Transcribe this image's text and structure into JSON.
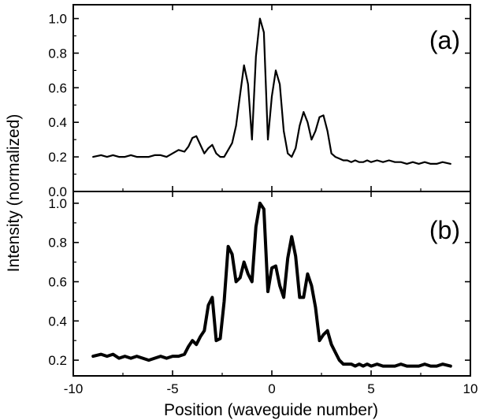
{
  "chart_data": [
    {
      "type": "line",
      "panel_label": "(a)",
      "xlim": [
        -10,
        10
      ],
      "ylim": [
        0.0,
        1.08
      ],
      "x_ticks": [
        -10,
        -5,
        0,
        5,
        10
      ],
      "y_ticks": [
        0.0,
        0.2,
        0.4,
        0.6,
        0.8,
        1.0
      ],
      "y_tick_labels": [
        "0.0",
        "0.2",
        "0.4",
        "0.6",
        "0.8",
        "1.0"
      ],
      "grid": false,
      "series": [
        {
          "color": "#000000",
          "x": [
            -9.0,
            -8.6,
            -8.3,
            -8.0,
            -7.7,
            -7.4,
            -7.1,
            -6.8,
            -6.5,
            -6.2,
            -5.9,
            -5.6,
            -5.3,
            -5.0,
            -4.7,
            -4.4,
            -4.2,
            -4.0,
            -3.8,
            -3.6,
            -3.4,
            -3.2,
            -3.0,
            -2.8,
            -2.6,
            -2.4,
            -2.2,
            -2.0,
            -1.8,
            -1.6,
            -1.4,
            -1.2,
            -1.0,
            -0.8,
            -0.6,
            -0.4,
            -0.2,
            0.0,
            0.2,
            0.4,
            0.6,
            0.8,
            1.0,
            1.2,
            1.4,
            1.6,
            1.8,
            2.0,
            2.2,
            2.4,
            2.6,
            2.8,
            3.0,
            3.2,
            3.4,
            3.6,
            3.8,
            4.0,
            4.2,
            4.4,
            4.6,
            4.8,
            5.0,
            5.3,
            5.6,
            5.9,
            6.2,
            6.5,
            6.8,
            7.1,
            7.4,
            7.7,
            8.0,
            8.3,
            8.6,
            9.0
          ],
          "y": [
            0.2,
            0.21,
            0.2,
            0.21,
            0.2,
            0.2,
            0.21,
            0.2,
            0.2,
            0.2,
            0.21,
            0.21,
            0.2,
            0.22,
            0.24,
            0.23,
            0.26,
            0.31,
            0.32,
            0.27,
            0.22,
            0.25,
            0.27,
            0.22,
            0.2,
            0.2,
            0.24,
            0.28,
            0.38,
            0.56,
            0.73,
            0.62,
            0.3,
            0.78,
            1.0,
            0.92,
            0.3,
            0.55,
            0.7,
            0.62,
            0.35,
            0.22,
            0.2,
            0.25,
            0.38,
            0.46,
            0.4,
            0.3,
            0.35,
            0.43,
            0.44,
            0.35,
            0.22,
            0.2,
            0.19,
            0.18,
            0.18,
            0.17,
            0.18,
            0.17,
            0.17,
            0.18,
            0.17,
            0.18,
            0.17,
            0.18,
            0.17,
            0.17,
            0.16,
            0.17,
            0.16,
            0.17,
            0.16,
            0.16,
            0.17,
            0.16
          ],
          "x_shift": [
            0,
            0,
            0,
            0,
            0,
            0,
            0,
            0,
            0,
            0,
            0,
            0,
            0,
            0,
            0,
            0,
            0,
            0,
            0,
            0,
            0,
            0,
            0,
            0,
            0,
            0,
            0,
            0,
            0,
            0,
            0,
            0,
            0,
            0,
            0,
            0,
            0,
            0,
            0,
            0,
            0,
            0,
            0,
            0,
            0,
            0,
            0,
            0,
            0,
            0,
            0,
            0,
            0,
            0,
            0,
            0,
            0,
            0,
            0,
            0,
            0,
            0,
            0,
            0,
            0,
            0,
            0,
            0,
            0,
            0,
            0,
            0,
            0,
            0,
            0,
            0
          ]
        }
      ]
    },
    {
      "type": "line",
      "panel_label": "(b)",
      "xlim": [
        -10,
        10
      ],
      "ylim": [
        0.12,
        1.06
      ],
      "x_ticks": [
        -10,
        -5,
        0,
        5,
        10
      ],
      "x_tick_labels": [
        "-10",
        "-5",
        "0",
        "5",
        "10"
      ],
      "y_ticks": [
        0.2,
        0.4,
        0.6,
        0.8,
        1.0
      ],
      "y_tick_labels": [
        "0.2",
        "0.4",
        "0.6",
        "0.8",
        "1.0"
      ],
      "grid": false,
      "series": [
        {
          "color": "#000000",
          "x": [
            -9.0,
            -8.6,
            -8.3,
            -8.0,
            -7.7,
            -7.4,
            -7.1,
            -6.8,
            -6.5,
            -6.2,
            -5.9,
            -5.6,
            -5.3,
            -5.0,
            -4.7,
            -4.4,
            -4.2,
            -4.0,
            -3.8,
            -3.6,
            -3.4,
            -3.2,
            -3.0,
            -2.8,
            -2.6,
            -2.4,
            -2.2,
            -2.0,
            -1.8,
            -1.6,
            -1.4,
            -1.2,
            -1.0,
            -0.8,
            -0.6,
            -0.4,
            -0.2,
            0.0,
            0.2,
            0.4,
            0.6,
            0.8,
            1.0,
            1.2,
            1.4,
            1.6,
            1.8,
            2.0,
            2.2,
            2.4,
            2.6,
            2.8,
            3.0,
            3.2,
            3.4,
            3.6,
            3.8,
            4.0,
            4.2,
            4.4,
            4.6,
            4.8,
            5.0,
            5.3,
            5.6,
            5.9,
            6.2,
            6.5,
            6.8,
            7.1,
            7.4,
            7.7,
            8.0,
            8.3,
            8.6,
            9.0
          ],
          "y": [
            0.22,
            0.23,
            0.22,
            0.23,
            0.21,
            0.22,
            0.21,
            0.22,
            0.21,
            0.2,
            0.21,
            0.22,
            0.21,
            0.22,
            0.22,
            0.23,
            0.27,
            0.3,
            0.28,
            0.32,
            0.35,
            0.48,
            0.52,
            0.3,
            0.31,
            0.5,
            0.78,
            0.74,
            0.6,
            0.62,
            0.7,
            0.64,
            0.6,
            0.88,
            1.0,
            0.97,
            0.55,
            0.67,
            0.68,
            0.58,
            0.52,
            0.72,
            0.83,
            0.73,
            0.52,
            0.52,
            0.64,
            0.58,
            0.47,
            0.3,
            0.33,
            0.35,
            0.28,
            0.24,
            0.2,
            0.18,
            0.18,
            0.18,
            0.17,
            0.18,
            0.17,
            0.18,
            0.17,
            0.18,
            0.17,
            0.17,
            0.17,
            0.18,
            0.17,
            0.17,
            0.17,
            0.18,
            0.17,
            0.17,
            0.18,
            0.17
          ]
        }
      ]
    }
  ],
  "axes": {
    "xlabel": "Position (waveguide number)",
    "ylabel": "Intensity (normalized)"
  }
}
